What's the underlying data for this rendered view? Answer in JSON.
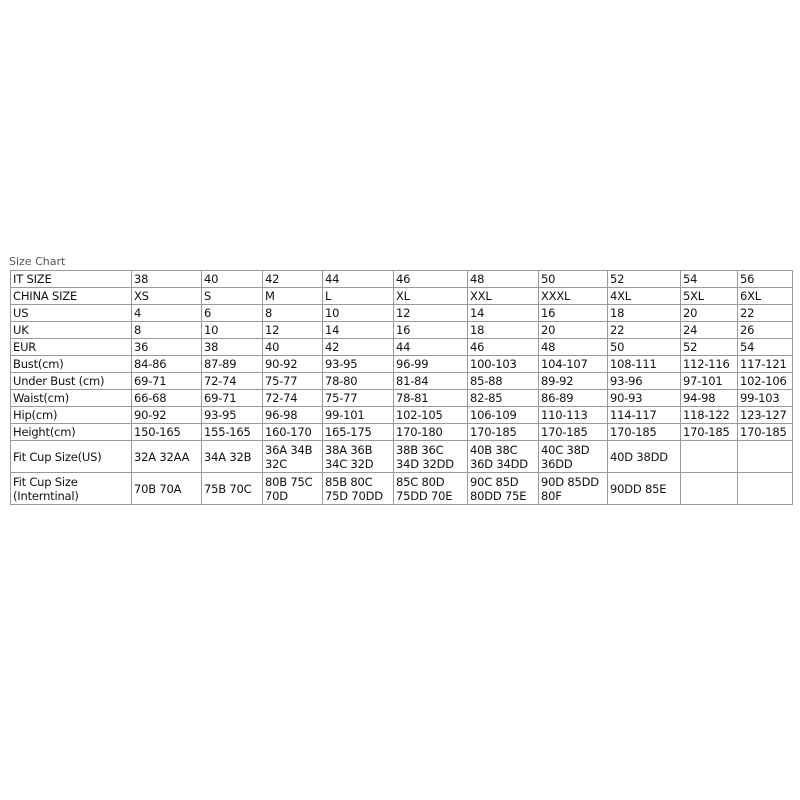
{
  "title": "Size Chart",
  "rows": [
    {
      "label": "IT SIZE",
      "cells": [
        "38",
        "40",
        "42",
        "44",
        "46",
        "48",
        "50",
        "52",
        "54",
        "56"
      ]
    },
    {
      "label": "CHINA SIZE",
      "cells": [
        "XS",
        "S",
        "M",
        "L",
        "XL",
        "XXL",
        "XXXL",
        "4XL",
        "5XL",
        "6XL"
      ]
    },
    {
      "label": "US",
      "cells": [
        "4",
        "6",
        "8",
        "10",
        "12",
        "14",
        "16",
        "18",
        "20",
        "22"
      ]
    },
    {
      "label": "UK",
      "cells": [
        "8",
        "10",
        "12",
        "14",
        "16",
        "18",
        "20",
        "22",
        "24",
        "26"
      ]
    },
    {
      "label": "EUR",
      "cells": [
        "36",
        "38",
        "40",
        "42",
        "44",
        "46",
        "48",
        "50",
        "52",
        "54"
      ]
    },
    {
      "label": "Bust(cm)",
      "cells": [
        "84-86",
        "87-89",
        "90-92",
        "93-95",
        "96-99",
        "100-103",
        "104-107",
        "108-111",
        "112-116",
        "117-121"
      ]
    },
    {
      "label": "Under Bust (cm)",
      "cells": [
        "69-71",
        "72-74",
        "75-77",
        "78-80",
        "81-84",
        "85-88",
        "89-92",
        "93-96",
        "97-101",
        "102-106"
      ]
    },
    {
      "label": "Waist(cm)",
      "cells": [
        "66-68",
        "69-71",
        "72-74",
        "75-77",
        "78-81",
        "82-85",
        "86-89",
        "90-93",
        "94-98",
        "99-103"
      ]
    },
    {
      "label": "Hip(cm)",
      "cells": [
        "90-92",
        "93-95",
        "96-98",
        "99-101",
        "102-105",
        "106-109",
        "110-113",
        "114-117",
        "118-122",
        "123-127"
      ]
    },
    {
      "label": "Height(cm)",
      "cells": [
        "150-165",
        "155-165",
        "160-170",
        "165-175",
        "170-180",
        "170-185",
        "170-185",
        "170-185",
        "170-185",
        "170-185"
      ]
    },
    {
      "label": "Fit Cup Size(US)",
      "cells": [
        "32A 32AA",
        "34A 32B",
        "36A 34B 32C",
        "38A 36B 34C 32D",
        "38B 36C 34D 32DD",
        "40B 38C 36D 34DD",
        "40C 38D 36DD",
        "40D 38DD",
        "",
        ""
      ]
    },
    {
      "label": "Fit Cup Size (Interntinal)",
      "cells": [
        "70B 70A",
        "75B 70C",
        "80B 75C 70D",
        "85B 80C 75D 70DD",
        "85C 80D 75DD 70E",
        "90C 85D 80DD 75E",
        "90D 85DD 80F",
        "90DD 85E",
        "",
        ""
      ]
    }
  ]
}
